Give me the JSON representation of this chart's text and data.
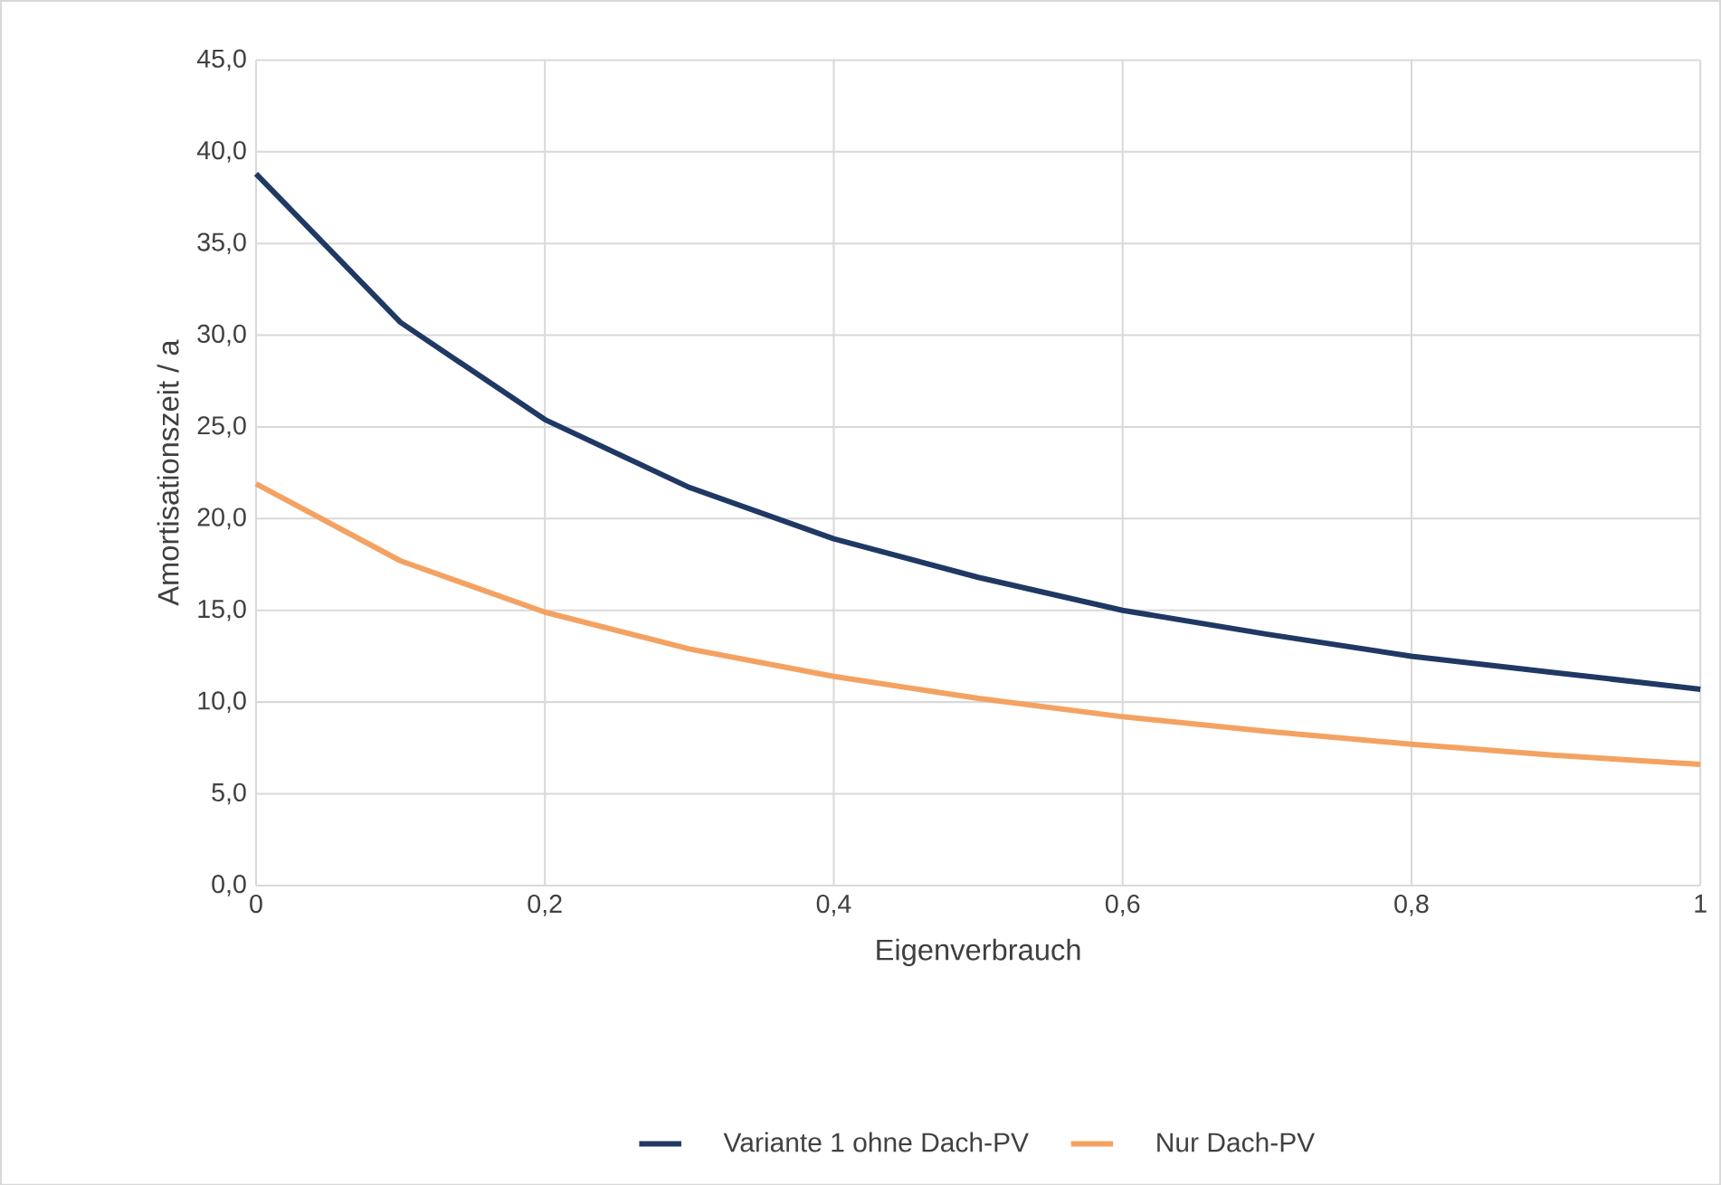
{
  "chart_data": {
    "type": "line",
    "xlabel": "Eigenverbrauch",
    "ylabel": "Amortisationszeit / a",
    "x": [
      0,
      0.1,
      0.2,
      0.3,
      0.4,
      0.5,
      0.6,
      0.7,
      0.8,
      0.9,
      1
    ],
    "series": [
      {
        "name": "Variante 1 ohne Dach-PV",
        "color": "#203864",
        "values": [
          38.8,
          30.7,
          25.4,
          21.7,
          18.9,
          16.8,
          15.0,
          13.7,
          12.5,
          11.6,
          10.7
        ]
      },
      {
        "name": "Nur Dach-PV",
        "color": "#f4a262",
        "values": [
          21.9,
          17.7,
          14.9,
          12.9,
          11.4,
          10.2,
          9.2,
          8.4,
          7.7,
          7.1,
          6.6
        ]
      }
    ],
    "xlim": [
      0,
      1
    ],
    "xticks": [
      0,
      {
        "value": 0.2,
        "label": "0,2"
      },
      {
        "value": 0.4,
        "label": "0,4"
      },
      {
        "value": 0.6,
        "label": "0,6"
      },
      {
        "value": 0.8,
        "label": "0,8"
      },
      1
    ],
    "ylim": [
      0,
      45
    ],
    "yticks": [
      {
        "value": 0,
        "label": "0,0"
      },
      {
        "value": 5,
        "label": "5,0"
      },
      {
        "value": 10,
        "label": "10,0"
      },
      {
        "value": 15,
        "label": "15,0"
      },
      {
        "value": 20,
        "label": "20,0"
      },
      {
        "value": 25,
        "label": "25,0"
      },
      {
        "value": 30,
        "label": "30,0"
      },
      {
        "value": 35,
        "label": "35,0"
      },
      {
        "value": 40,
        "label": "40,0"
      },
      {
        "value": 45,
        "label": "45,0"
      }
    ],
    "grid": true,
    "legend": "bottom",
    "marker": "none",
    "line_style": "solid"
  }
}
